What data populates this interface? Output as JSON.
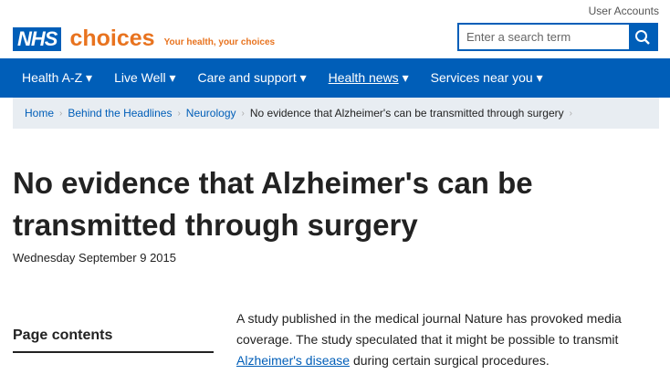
{
  "header": {
    "user_accounts": "User Accounts",
    "logo_nhs": "NHS",
    "logo_choices": "choices",
    "tagline": "Your health, your choices",
    "search_placeholder": "Enter a search term"
  },
  "nav": [
    "Health A-Z",
    "Live Well",
    "Care and support",
    "Health news",
    "Services near you"
  ],
  "breadcrumb": [
    "Home",
    "Behind the Headlines",
    "Neurology",
    "No evidence that Alzheimer's can be transmitted through surgery"
  ],
  "article": {
    "title": "No evidence that Alzheimer's can be transmitted through surgery",
    "date": "Wednesday September 9 2015",
    "page_contents": "Page contents",
    "intro_before": "A study published in the medical journal Nature has provoked media coverage. The study speculated that it might be possible to transmit ",
    "intro_link": "Alzheimer's disease",
    "intro_after": " during certain surgical procedures."
  },
  "colors": {
    "brand": "#005eb8",
    "accent": "#e8731f"
  }
}
